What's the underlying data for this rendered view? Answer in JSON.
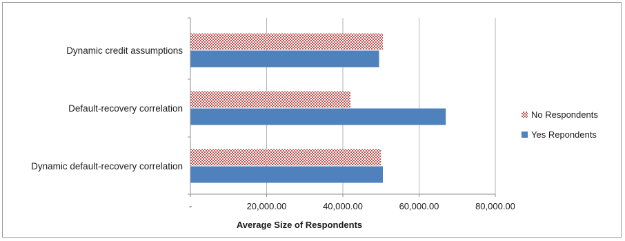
{
  "chart_data": {
    "type": "bar",
    "orientation": "horizontal",
    "categories": [
      "Dynamic credit assumptions",
      "Default-recovery correlation",
      "Dynamic default-recovery correlation"
    ],
    "series": [
      {
        "name": "No Respondents",
        "values": [
          50500,
          42000,
          50000
        ]
      },
      {
        "name": "Yes Repondents",
        "values": [
          49500,
          67000,
          50500
        ]
      }
    ],
    "xlabel": "Average Size of Respondents",
    "ylabel": "",
    "xlim": [
      0,
      80000
    ],
    "xticks": [
      0,
      20000,
      40000,
      60000,
      80000
    ],
    "xtick_labels": [
      "-",
      "20,000.00",
      "40,000.00",
      "60,000.00",
      "80,000.00"
    ],
    "grid": true,
    "legend_position": "right"
  },
  "colors": {
    "yes_series": "#4f81bd",
    "no_series_pattern": "#c0504d",
    "grid": "#b3b3b3",
    "axis": "#8c8c8c"
  }
}
